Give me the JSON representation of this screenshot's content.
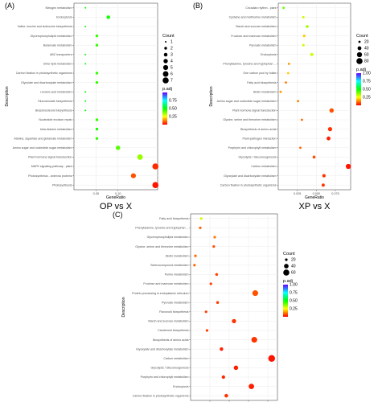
{
  "chart_data": [
    {
      "type": "scatter",
      "panel_label": "(A)",
      "comparison": "OP vs X",
      "xlabel": "GeneRatio",
      "ylabel": "Description",
      "xlim": [
        0.0,
        0.19
      ],
      "xticks": [
        0.05,
        0.1
      ],
      "xtick_labels": [
        "0.05",
        "0.10"
      ],
      "size_legend": {
        "title": "Count",
        "values": [
          1,
          2,
          3,
          4,
          5,
          6,
          7
        ],
        "labels": [
          "1",
          "2",
          "3",
          "4",
          "5",
          "6",
          "7"
        ]
      },
      "color_legend": {
        "title": "p.adj",
        "ticks": [
          0.25,
          0.5,
          0.75
        ],
        "labels": [
          "0.25",
          "0.50",
          "0.75"
        ],
        "min": 0.0,
        "max": 1.0
      },
      "categories": [
        "Photosynthesis",
        "Photosynthesis - antenna proteins",
        "MAPK signaling pathway - plant",
        "Plant hormone signal transduction",
        "Amino sugar and nucleotide sugar metabolism",
        "Alanine, aspartate and glutamate metabolism",
        "beta-Alanine metabolism",
        "Nucleotide excision repair",
        "Brassinosteroid biosynthesis",
        "Glucosinolate biosynthesis",
        "Linoleic acid metabolism",
        "Glycolate and dicarboxylate metabolism",
        "Carbon fixation in photosynthetic organisms",
        "Ether lipid metabolism",
        "ABC transporters",
        "Butanoate metabolism",
        "Glycerophospholipid metabolism",
        "Valine, leucine and isoleucine biosynthesis",
        "Endocytosis",
        "Nitrogen metabolism"
      ],
      "x": [
        0.185,
        0.135,
        0.185,
        0.15,
        0.1,
        0.052,
        0.052,
        0.052,
        0.026,
        0.026,
        0.026,
        0.052,
        0.052,
        0.026,
        0.026,
        0.052,
        0.052,
        0.026,
        0.078,
        0.026
      ],
      "counts": [
        7,
        5,
        7,
        6,
        4,
        2,
        2,
        2,
        1,
        1,
        1,
        2,
        2,
        1,
        1,
        2,
        2,
        1,
        3,
        1
      ],
      "padj": [
        0.02,
        0.08,
        0.04,
        0.35,
        0.42,
        0.45,
        0.48,
        0.45,
        0.5,
        0.5,
        0.5,
        0.45,
        0.45,
        0.5,
        0.5,
        0.45,
        0.45,
        0.5,
        0.48,
        0.5
      ]
    },
    {
      "type": "scatter",
      "panel_label": "(B)",
      "comparison": "XP vs X",
      "xlabel": "GeneRatio",
      "ylabel": "Description",
      "xlim": [
        0.0,
        0.095
      ],
      "xticks": [
        0.025,
        0.05,
        0.075
      ],
      "xtick_labels": [
        "0.025",
        "0.050",
        "0.075"
      ],
      "size_legend": {
        "title": "Count",
        "values": [
          20,
          40,
          60,
          80
        ],
        "labels": [
          "20",
          "40",
          "60",
          "80"
        ]
      },
      "color_legend": {
        "title": "p.adj",
        "ticks": [
          0.25,
          0.5,
          0.75,
          1.0
        ],
        "labels": [
          "0.25",
          "0.50",
          "0.75",
          "1.00"
        ],
        "min": 0.0,
        "max": 1.0
      },
      "categories": [
        "Carbon fixation in photosynthetic organisms",
        "Glyoxylate and dicarboxylate metabolism",
        "Carbon metabolism",
        "Glycolysis / Gluconeogenesis",
        "Porphyrin and chlorophyll metabolism",
        "Plant-pathogen interaction",
        "Biosynthesis of amino acids",
        "Glycine, serine and threonine metabolism",
        "Plant hormone signal transduction",
        "Amino sugar and nucleotide sugar metabolism",
        "Biotin metabolism",
        "Fatty acid biosynthesis",
        "One carbon pool by folate",
        "Phenylalanine, tyrosine and tryptophan ...",
        "Endocytosis",
        "Pyruvate metabolism",
        "Fructose and mannose metabolism",
        "Starch and sucrose metabolism",
        "Cysteine and methionine metabolism",
        "Circadian rhythm - plant"
      ],
      "x": [
        0.059,
        0.06,
        0.092,
        0.047,
        0.029,
        0.066,
        0.068,
        0.031,
        0.07,
        0.026,
        0.003,
        0.01,
        0.013,
        0.014,
        0.044,
        0.033,
        0.034,
        0.038,
        0.033,
        0.007
      ],
      "counts": [
        30,
        32,
        60,
        28,
        18,
        40,
        45,
        20,
        48,
        16,
        2,
        7,
        8,
        9,
        30,
        22,
        24,
        26,
        22,
        5
      ],
      "padj": [
        0.05,
        0.05,
        0.02,
        0.08,
        0.1,
        0.03,
        0.05,
        0.1,
        0.08,
        0.12,
        0.15,
        0.12,
        0.2,
        0.15,
        0.3,
        0.3,
        0.2,
        0.35,
        0.3,
        0.4
      ]
    },
    {
      "type": "scatter",
      "panel_label": "(C)",
      "comparison": "OP vs XP",
      "xlabel": "GeneRatio",
      "ylabel": "Description",
      "xlim": [
        0.0,
        0.09
      ],
      "xticks": [
        0.02,
        0.04,
        0.06,
        0.08
      ],
      "xtick_labels": [
        "0.02",
        "0.04",
        "0.06",
        "0.08"
      ],
      "size_legend": {
        "title": "Count",
        "values": [
          20,
          40,
          60
        ],
        "labels": [
          "20",
          "40",
          "60"
        ]
      },
      "color_legend": {
        "title": "p.adj",
        "ticks": [
          0.25,
          0.5,
          0.75,
          1.0
        ],
        "labels": [
          "0.25",
          "0.50",
          "0.75",
          "1.00"
        ],
        "min": 0.0,
        "max": 1.0
      },
      "categories": [
        "Carbon fixation in photosynthetic organisms",
        "Endocytosis",
        "Porphyrin and chlorophyll metabolism",
        "Glycolysis / Gluconeogenesis",
        "Carbon metabolism",
        "Glyoxylate and dicarboxylate metabolism",
        "Biosynthesis of amino acids",
        "Carotenoid biosynthesis",
        "Starch and sucrose metabolism",
        "Flavonoid biosynthesis",
        "Pyruvate metabolism",
        "Protein processing in endoplasmic reticulum",
        "Fructose and mannose metabolism",
        "Purine metabolism",
        "Selenocompound metabolism",
        "Biotin metabolism",
        "Glycine, serine and threonine metabolism",
        "Glycerophospholipid metabolism",
        "Phenylalanine, tyrosine and tryptophan ...",
        "Fatty acid biosynthesis"
      ],
      "x": [
        0.037,
        0.063,
        0.034,
        0.047,
        0.084,
        0.032,
        0.066,
        0.017,
        0.045,
        0.016,
        0.028,
        0.067,
        0.021,
        0.027,
        0.004,
        0.005,
        0.024,
        0.025,
        0.01,
        0.011
      ],
      "counts": [
        30,
        50,
        28,
        38,
        70,
        28,
        55,
        12,
        36,
        12,
        22,
        55,
        18,
        22,
        3,
        4,
        20,
        20,
        8,
        9
      ],
      "padj": [
        0.05,
        0.03,
        0.04,
        0.03,
        0.02,
        0.03,
        0.05,
        0.06,
        0.05,
        0.06,
        0.06,
        0.08,
        0.06,
        0.07,
        0.1,
        0.1,
        0.08,
        0.12,
        0.1,
        0.3
      ]
    }
  ]
}
